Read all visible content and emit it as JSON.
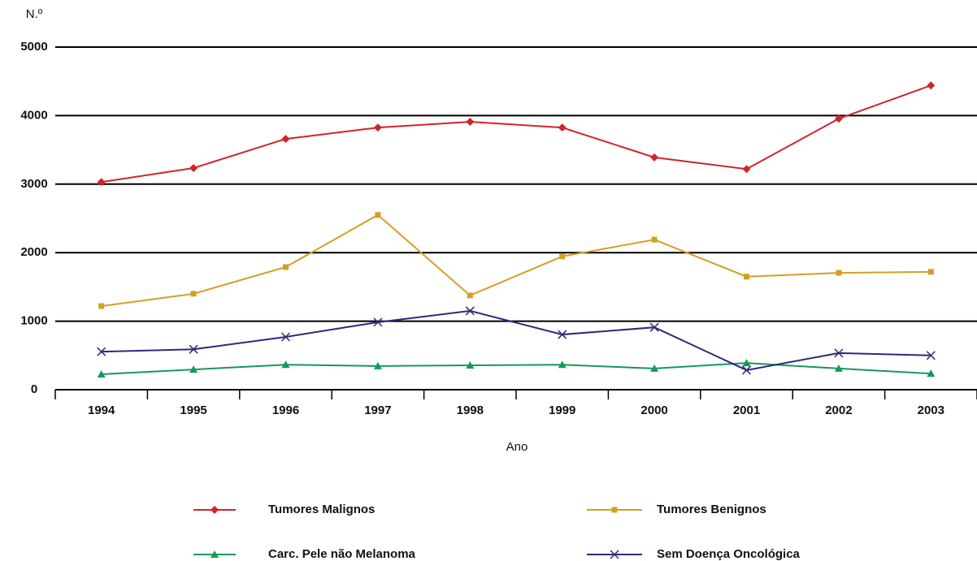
{
  "chart_data": {
    "type": "line",
    "y_label": "N.º",
    "x_label": "Ano",
    "categories": [
      "1994",
      "1995",
      "1996",
      "1997",
      "1998",
      "1999",
      "2000",
      "2001",
      "2002",
      "2003"
    ],
    "series": [
      {
        "name": "Tumores Malignos",
        "color": "#d2232a",
        "marker": "diamond",
        "values": [
          3030,
          3235,
          3660,
          3825,
          3910,
          3825,
          3390,
          3220,
          3955,
          4440
        ]
      },
      {
        "name": "Tumores Benignos",
        "color": "#d4a020",
        "marker": "square",
        "values": [
          1220,
          1400,
          1790,
          2550,
          1375,
          1945,
          2190,
          1650,
          1705,
          1720
        ]
      },
      {
        "name": "Carc. Pele não Melanoma",
        "color": "#139a5a",
        "marker": "triangle",
        "values": [
          225,
          295,
          365,
          345,
          355,
          365,
          310,
          390,
          310,
          235
        ]
      },
      {
        "name": "Sem Doença Oncológica",
        "color": "#2b2a7a",
        "marker": "x",
        "values": [
          555,
          590,
          770,
          985,
          1150,
          805,
          910,
          285,
          535,
          500
        ]
      }
    ],
    "ylim": [
      0,
      5000
    ],
    "yticks": [
      0,
      1000,
      2000,
      3000,
      4000,
      5000
    ],
    "grid": true
  }
}
